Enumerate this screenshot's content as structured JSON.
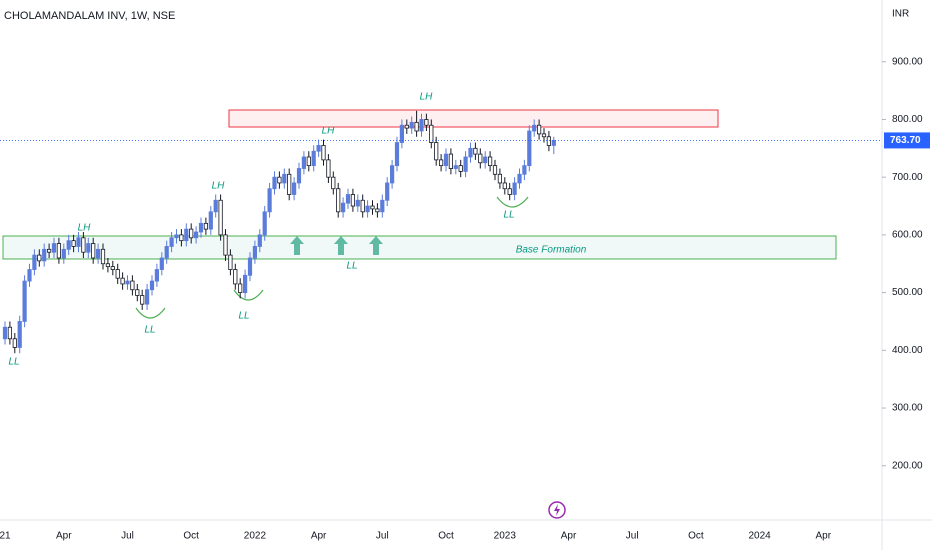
{
  "chart_data": {
    "type": "candlestick",
    "title": "CHOLAMANDALAM INV, 1W, NSE",
    "currency": "INR",
    "last_price_label": "763.70",
    "up_color": "#5b7cdb",
    "down_color": "#ffffff",
    "ylim": [
      106,
      1007
    ],
    "yticks": [
      {
        "value": 200,
        "label": "200.00"
      },
      {
        "value": 300,
        "label": "300.00"
      },
      {
        "value": 400,
        "label": "400.00"
      },
      {
        "value": 500,
        "label": "500.00"
      },
      {
        "value": 600,
        "label": "600.00"
      },
      {
        "value": 700,
        "label": "700.00"
      },
      {
        "value": 800,
        "label": "800.00"
      },
      {
        "value": 900,
        "label": "900.00"
      }
    ],
    "annotations": [
      "LH",
      "LH",
      "LH",
      "LH",
      "LL",
      "LL",
      "LL",
      "LL",
      "LL",
      "Base Formation"
    ],
    "categories": [
      "21",
      null,
      null,
      null,
      null,
      null,
      null,
      null,
      null,
      null,
      null,
      null,
      "Apr",
      null,
      null,
      null,
      null,
      null,
      null,
      null,
      null,
      null,
      null,
      null,
      null,
      "Jul",
      null,
      null,
      null,
      null,
      null,
      null,
      null,
      null,
      null,
      null,
      null,
      null,
      "Oct",
      null,
      null,
      null,
      null,
      null,
      null,
      null,
      null,
      null,
      null,
      null,
      null,
      "2022",
      null,
      null,
      null,
      null,
      null,
      null,
      null,
      null,
      null,
      null,
      null,
      null,
      "Apr",
      null,
      null,
      null,
      null,
      null,
      null,
      null,
      null,
      null,
      null,
      null,
      null,
      "Jul",
      null,
      null,
      null,
      null,
      null,
      null,
      null,
      null,
      null,
      null,
      null,
      null,
      "Oct",
      null,
      null,
      null,
      null,
      null,
      null,
      null,
      null,
      null,
      null,
      null,
      "2023",
      null,
      null,
      null,
      null,
      null,
      null,
      null,
      null,
      null,
      null,
      null,
      null,
      "Apr",
      null,
      null,
      null,
      null,
      null,
      null,
      null,
      null,
      null,
      null,
      null,
      null,
      "Jul",
      null,
      null,
      null,
      null,
      null,
      null,
      null,
      null,
      null,
      null,
      null,
      null,
      "Oct",
      null,
      null,
      null,
      null,
      null,
      null,
      null,
      null,
      null,
      null,
      null,
      null,
      "2024",
      null,
      null,
      null,
      null,
      null,
      null,
      null,
      null,
      null,
      null,
      null,
      null,
      "Apr",
      null,
      null,
      null,
      null
    ],
    "values": [
      [
        420,
        450,
        410,
        440
      ],
      [
        440,
        450,
        410,
        420
      ],
      [
        420,
        430,
        395,
        405
      ],
      [
        405,
        460,
        395,
        450
      ],
      [
        450,
        530,
        440,
        520
      ],
      [
        520,
        550,
        510,
        540
      ],
      [
        540,
        575,
        530,
        565
      ],
      [
        565,
        575,
        545,
        555
      ],
      [
        555,
        585,
        545,
        575
      ],
      [
        575,
        585,
        560,
        570
      ],
      [
        570,
        595,
        560,
        585
      ],
      [
        585,
        595,
        550,
        560
      ],
      [
        560,
        585,
        550,
        575
      ],
      [
        575,
        600,
        565,
        590
      ],
      [
        590,
        600,
        570,
        580
      ],
      [
        580,
        605,
        570,
        595
      ],
      [
        595,
        605,
        560,
        570
      ],
      [
        570,
        595,
        560,
        585
      ],
      [
        585,
        595,
        550,
        560
      ],
      [
        560,
        585,
        550,
        575
      ],
      [
        575,
        585,
        540,
        550
      ],
      [
        550,
        560,
        535,
        545
      ],
      [
        545,
        555,
        530,
        540
      ],
      [
        540,
        550,
        515,
        525
      ],
      [
        525,
        535,
        505,
        515
      ],
      [
        515,
        530,
        505,
        520
      ],
      [
        520,
        530,
        495,
        505
      ],
      [
        505,
        515,
        485,
        495
      ],
      [
        495,
        505,
        470,
        480
      ],
      [
        480,
        515,
        470,
        505
      ],
      [
        505,
        530,
        495,
        520
      ],
      [
        520,
        550,
        510,
        540
      ],
      [
        540,
        570,
        530,
        560
      ],
      [
        560,
        590,
        550,
        580
      ],
      [
        580,
        605,
        570,
        595
      ],
      [
        595,
        610,
        585,
        600
      ],
      [
        600,
        610,
        580,
        590
      ],
      [
        590,
        620,
        580,
        610
      ],
      [
        610,
        620,
        585,
        595
      ],
      [
        595,
        615,
        585,
        605
      ],
      [
        605,
        630,
        595,
        620
      ],
      [
        620,
        630,
        600,
        610
      ],
      [
        610,
        650,
        600,
        640
      ],
      [
        640,
        670,
        630,
        660
      ],
      [
        660,
        670,
        590,
        600
      ],
      [
        600,
        610,
        555,
        565
      ],
      [
        565,
        575,
        530,
        540
      ],
      [
        540,
        550,
        505,
        515
      ],
      [
        515,
        525,
        490,
        500
      ],
      [
        500,
        540,
        490,
        530
      ],
      [
        530,
        570,
        520,
        560
      ],
      [
        560,
        590,
        550,
        580
      ],
      [
        580,
        610,
        570,
        600
      ],
      [
        600,
        650,
        590,
        640
      ],
      [
        640,
        690,
        630,
        680
      ],
      [
        680,
        710,
        670,
        700
      ],
      [
        700,
        710,
        680,
        690
      ],
      [
        690,
        715,
        680,
        705
      ],
      [
        705,
        715,
        660,
        670
      ],
      [
        670,
        700,
        660,
        690
      ],
      [
        690,
        725,
        680,
        715
      ],
      [
        715,
        745,
        705,
        735
      ],
      [
        735,
        745,
        710,
        720
      ],
      [
        720,
        755,
        710,
        745
      ],
      [
        745,
        765,
        735,
        755
      ],
      [
        755,
        765,
        720,
        730
      ],
      [
        730,
        740,
        690,
        700
      ],
      [
        700,
        710,
        670,
        680
      ],
      [
        680,
        690,
        630,
        640
      ],
      [
        640,
        665,
        630,
        655
      ],
      [
        655,
        680,
        645,
        670
      ],
      [
        670,
        680,
        640,
        650
      ],
      [
        650,
        670,
        640,
        660
      ],
      [
        660,
        670,
        630,
        640
      ],
      [
        640,
        660,
        630,
        650
      ],
      [
        650,
        660,
        635,
        645
      ],
      [
        645,
        655,
        630,
        640
      ],
      [
        640,
        670,
        630,
        660
      ],
      [
        660,
        700,
        650,
        690
      ],
      [
        690,
        730,
        680,
        720
      ],
      [
        720,
        770,
        710,
        760
      ],
      [
        760,
        800,
        750,
        790
      ],
      [
        790,
        800,
        775,
        785
      ],
      [
        785,
        805,
        775,
        795
      ],
      [
        795,
        815,
        770,
        780
      ],
      [
        780,
        810,
        770,
        800
      ],
      [
        800,
        810,
        780,
        790
      ],
      [
        790,
        800,
        750,
        760
      ],
      [
        760,
        770,
        720,
        730
      ],
      [
        730,
        740,
        710,
        720
      ],
      [
        720,
        750,
        710,
        740
      ],
      [
        740,
        750,
        705,
        715
      ],
      [
        715,
        730,
        705,
        720
      ],
      [
        720,
        730,
        700,
        710
      ],
      [
        710,
        745,
        700,
        735
      ],
      [
        735,
        760,
        725,
        750
      ],
      [
        750,
        760,
        730,
        740
      ],
      [
        740,
        750,
        715,
        725
      ],
      [
        725,
        745,
        715,
        735
      ],
      [
        735,
        745,
        710,
        720
      ],
      [
        720,
        730,
        695,
        705
      ],
      [
        705,
        715,
        680,
        690
      ],
      [
        690,
        700,
        670,
        680
      ],
      [
        680,
        690,
        660,
        670
      ],
      [
        670,
        700,
        660,
        690
      ],
      [
        690,
        715,
        680,
        705
      ],
      [
        705,
        730,
        695,
        720
      ],
      [
        720,
        790,
        710,
        780
      ],
      [
        780,
        800,
        770,
        790
      ],
      [
        790,
        800,
        765,
        775
      ],
      [
        775,
        785,
        760,
        770
      ],
      [
        770,
        780,
        745,
        755
      ],
      [
        755,
        770,
        740,
        763.7
      ],
      null,
      null,
      null,
      null,
      null,
      null,
      null,
      null,
      null,
      null,
      null,
      null,
      null,
      null,
      null,
      null,
      null,
      null,
      null,
      null,
      null,
      null,
      null,
      null,
      null,
      null,
      null,
      null,
      null,
      null,
      null,
      null,
      null,
      null,
      null,
      null,
      null,
      null,
      null,
      null,
      null,
      null,
      null,
      null,
      null,
      null,
      null,
      null,
      null,
      null,
      null,
      null,
      null,
      null,
      null,
      null,
      null,
      null,
      null
    ]
  }
}
